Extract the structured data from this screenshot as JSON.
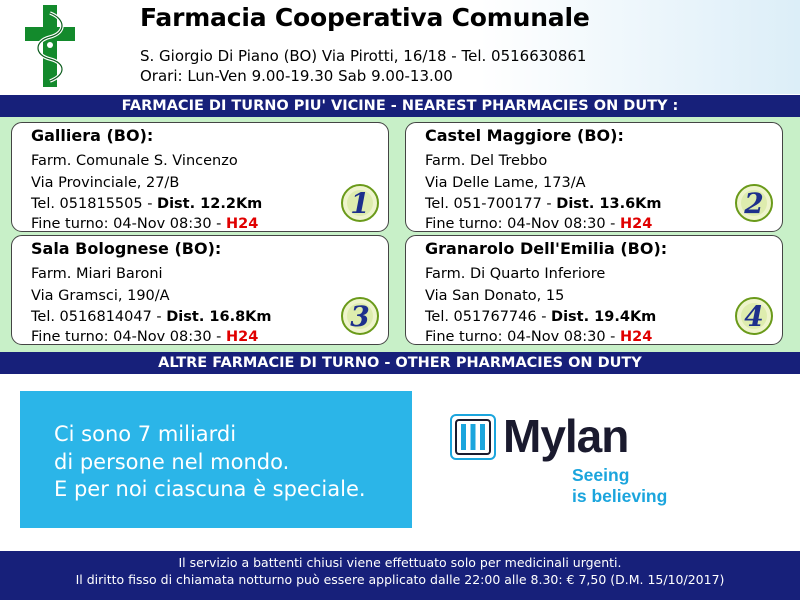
{
  "header": {
    "title": "Farmacia Cooperativa Comunale",
    "address": "S. Giorgio Di Piano (BO) Via Pirotti, 16/18 - Tel. 0516630861",
    "hours": "Orari: Lun-Ven 9.00-19.30 Sab 9.00-13.00"
  },
  "nearest_bar": "FARMACIE DI TURNO PIU' VICINE - NEAREST PHARMACIES ON DUTY :",
  "pharmacies": [
    {
      "town": "Galliera (BO):",
      "name": "Farm. Comunale S. Vincenzo",
      "address": "Via Provinciale, 27/B",
      "tel": "Tel. 051815505 -",
      "dist": "Dist. 12.2Km",
      "shift": "Fine turno: 04-Nov 08:30 -",
      "h24": "H24",
      "number": "1"
    },
    {
      "town": "Castel Maggiore (BO):",
      "name": "Farm. Del Trebbo",
      "address": "Via Delle Lame, 173/A",
      "tel": "Tel. 051-700177 -",
      "dist": "Dist. 13.6Km",
      "shift": "Fine turno: 04-Nov 08:30 -",
      "h24": "H24",
      "number": "2"
    },
    {
      "town": "Sala Bolognese (BO):",
      "name": "Farm. Miari Baroni",
      "address": "Via Gramsci, 190/A",
      "tel": "Tel. 0516814047 -",
      "dist": "Dist. 16.8Km",
      "shift": "Fine turno: 04-Nov 08:30 -",
      "h24": "H24",
      "number": "3"
    },
    {
      "town": "Granarolo Dell'Emilia (BO):",
      "name": "Farm. Di Quarto Inferiore",
      "address": "Via San Donato, 15",
      "tel": "Tel. 051767746 -",
      "dist": "Dist. 19.4Km",
      "shift": "Fine turno: 04-Nov 08:30 -",
      "h24": "H24",
      "number": "4"
    }
  ],
  "other_bar": "ALTRE FARMACIE DI TURNO - OTHER PHARMACIES ON DUTY",
  "ad": {
    "lines": [
      "Ci sono 7 miliardi",
      "di persone nel mondo.",
      "E per noi ciascuna è speciale."
    ],
    "brand": "Mylan",
    "tagline": [
      "Seeing",
      "is believing"
    ],
    "color": "#2bb5e8"
  },
  "footer": {
    "line1": "Il servizio a battenti chiusi viene effettuato solo per medicinali urgenti.",
    "line2": "Il diritto fisso di chiamata notturno può essere applicato dalle 22:00 alle 8.30: € 7,50 (D.M. 15/10/2017)"
  },
  "colors": {
    "bar": "#17207a",
    "panel": "#c8f0c8",
    "highlight": "#e00000",
    "logo_green": "#138a2c"
  }
}
